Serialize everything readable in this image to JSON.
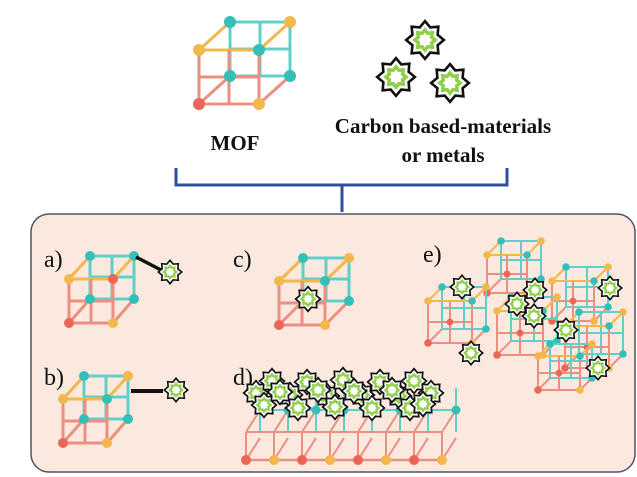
{
  "header": {
    "mof_label": "MOF",
    "carbon_label_line1": "Carbon based-materials",
    "carbon_label_line2": "or metals"
  },
  "panels": {
    "a": "a)",
    "b": "b)",
    "c": "c)",
    "d": "d)",
    "e": "e)"
  },
  "colors": {
    "teal": "#5fd0c8",
    "coral": "#ec8f80",
    "node_teal": "#36bfb6",
    "node_coral": "#ea6657",
    "node_yellow": "#f2b84b",
    "star_green": "#8fcf4a",
    "bracket": "#2f4f9e",
    "panel_fill": "#fbe9df",
    "panel_border": "#4b5563"
  },
  "icons": [
    "mof-cube-icon",
    "carbon-star-icon"
  ]
}
